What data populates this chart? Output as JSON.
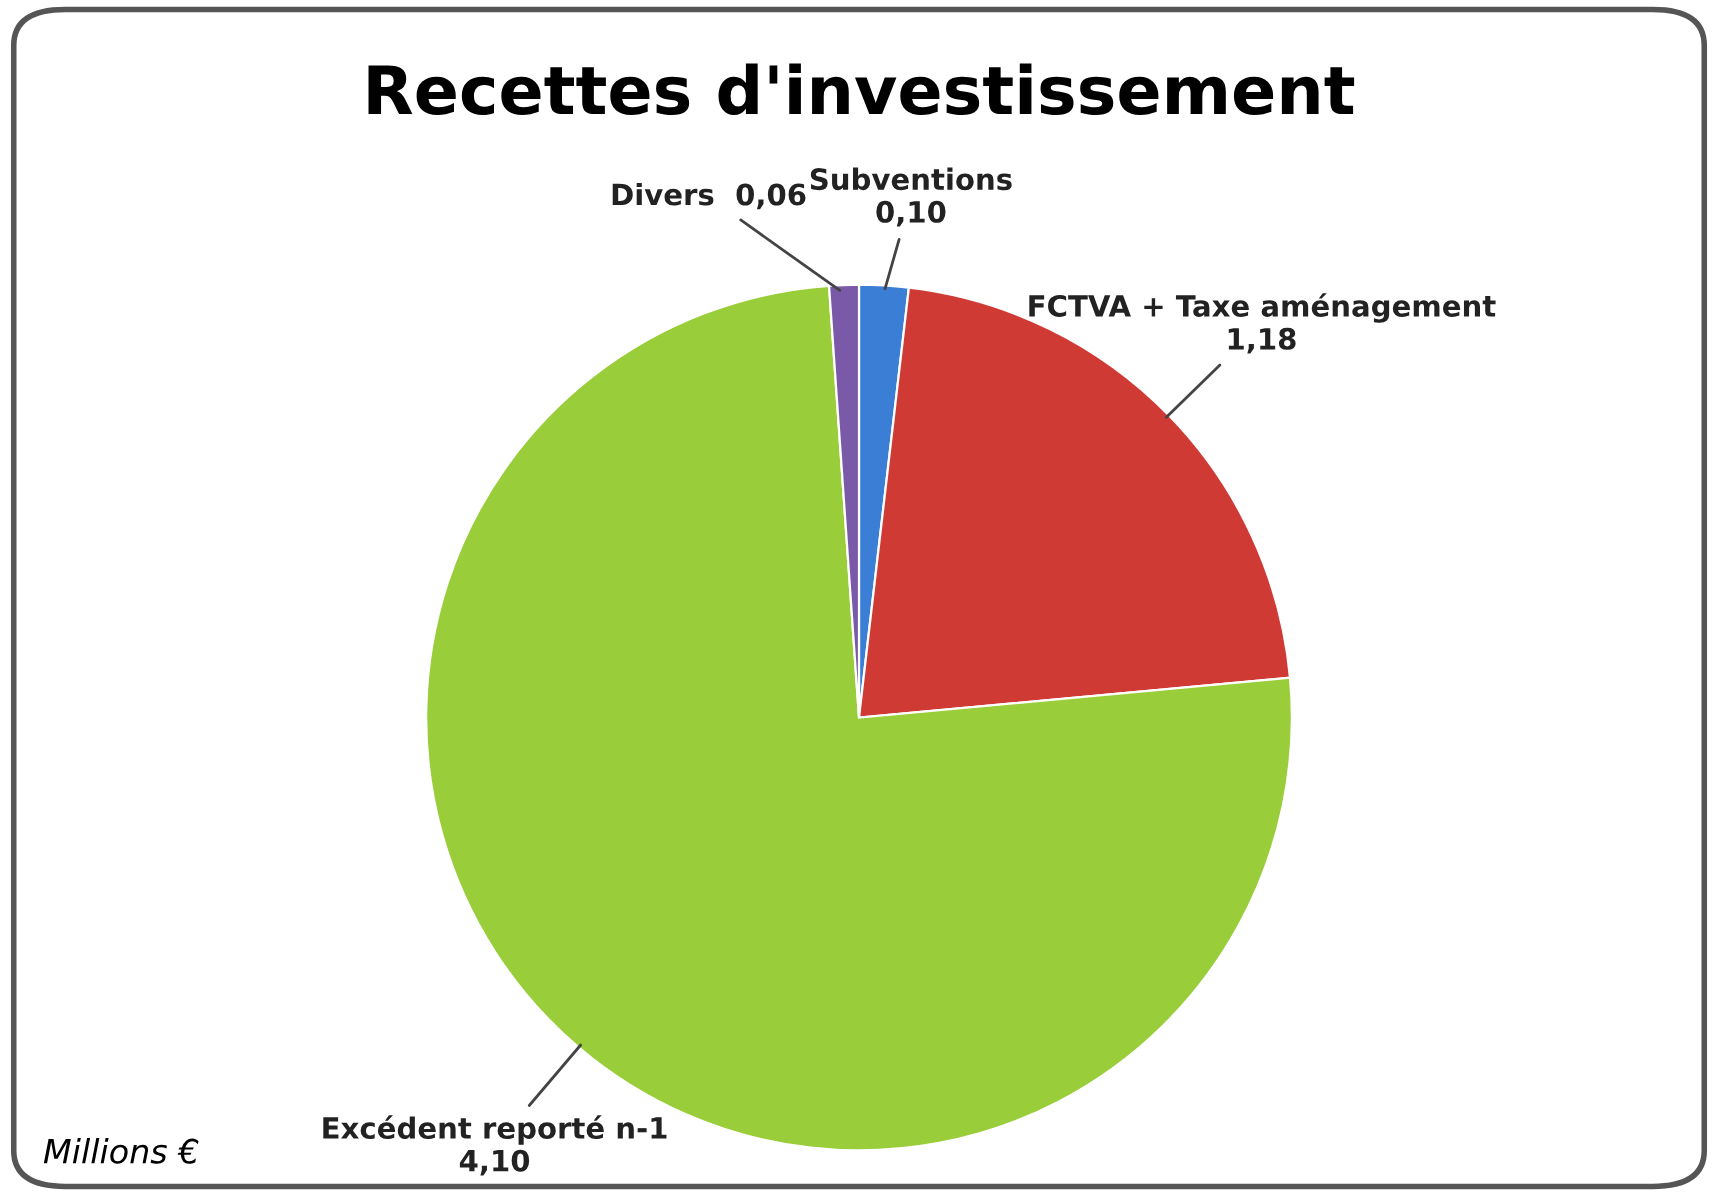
{
  "chart_data": {
    "type": "pie",
    "title": "Recettes d'investissement",
    "categories": [
      "Subventions",
      "FCTVA + Taxe aménagement",
      "Excédent reporté n-1",
      "Divers"
    ],
    "values": [
      0.1,
      1.18,
      4.1,
      0.06
    ],
    "value_labels": [
      "0,10",
      "1,18",
      "4,10",
      "0,06"
    ],
    "colors": [
      "#3a7fd5",
      "#d03a35",
      "#9acd3a",
      "#7a5aa8"
    ],
    "annotations": [
      "Millions €"
    ],
    "legend": false
  }
}
